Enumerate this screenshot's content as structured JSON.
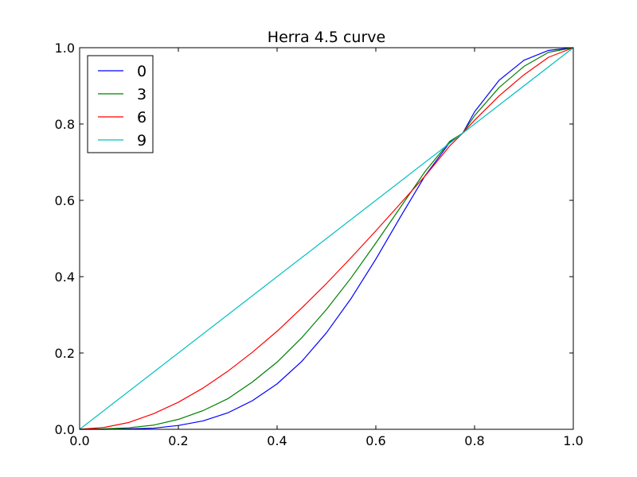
{
  "chart_data": {
    "type": "line",
    "title": "Herra 4.5 curve",
    "xlabel": "",
    "ylabel": "",
    "xlim": [
      0.0,
      1.0
    ],
    "ylim": [
      0.0,
      1.0
    ],
    "x_ticks": [
      "0.0",
      "0.2",
      "0.4",
      "0.6",
      "0.8",
      "1.0"
    ],
    "y_ticks": [
      "0.0",
      "0.2",
      "0.4",
      "0.6",
      "0.8",
      "1.0"
    ],
    "grid": false,
    "legend_position": "top-left",
    "series": [
      {
        "name": "0",
        "color": "#0000ff",
        "x": [
          0.0,
          0.05,
          0.1,
          0.15,
          0.2,
          0.25,
          0.3,
          0.35,
          0.4,
          0.45,
          0.5,
          0.55,
          0.6,
          0.65,
          0.7,
          0.75,
          0.776,
          0.8,
          0.85,
          0.9,
          0.95,
          1.0
        ],
        "y": [
          0.0,
          0.0,
          0.001,
          0.003,
          0.01,
          0.022,
          0.043,
          0.075,
          0.119,
          0.178,
          0.253,
          0.343,
          0.446,
          0.557,
          0.665,
          0.752,
          0.776,
          0.832,
          0.915,
          0.967,
          0.993,
          1.0
        ]
      },
      {
        "name": "3",
        "color": "#008000",
        "x": [
          0.0,
          0.05,
          0.1,
          0.15,
          0.2,
          0.25,
          0.3,
          0.35,
          0.4,
          0.45,
          0.5,
          0.55,
          0.6,
          0.65,
          0.7,
          0.75,
          0.776,
          0.8,
          0.85,
          0.9,
          0.95,
          1.0
        ],
        "y": [
          0.0,
          0.001,
          0.004,
          0.011,
          0.026,
          0.049,
          0.08,
          0.124,
          0.176,
          0.24,
          0.314,
          0.397,
          0.488,
          0.582,
          0.676,
          0.755,
          0.776,
          0.822,
          0.896,
          0.951,
          0.988,
          1.0
        ]
      },
      {
        "name": "6",
        "color": "#ff0000",
        "x": [
          0.0,
          0.05,
          0.1,
          0.15,
          0.2,
          0.25,
          0.3,
          0.35,
          0.4,
          0.45,
          0.5,
          0.55,
          0.6,
          0.65,
          0.7,
          0.75,
          0.776,
          0.8,
          0.85,
          0.9,
          0.95,
          1.0
        ],
        "y": [
          0.0,
          0.005,
          0.018,
          0.041,
          0.071,
          0.108,
          0.152,
          0.202,
          0.257,
          0.318,
          0.382,
          0.45,
          0.52,
          0.592,
          0.664,
          0.743,
          0.776,
          0.81,
          0.874,
          0.929,
          0.975,
          1.0
        ]
      },
      {
        "name": "9",
        "color": "#00bfbf",
        "x": [
          0.0,
          1.0
        ],
        "y": [
          0.0,
          1.0
        ]
      }
    ]
  }
}
